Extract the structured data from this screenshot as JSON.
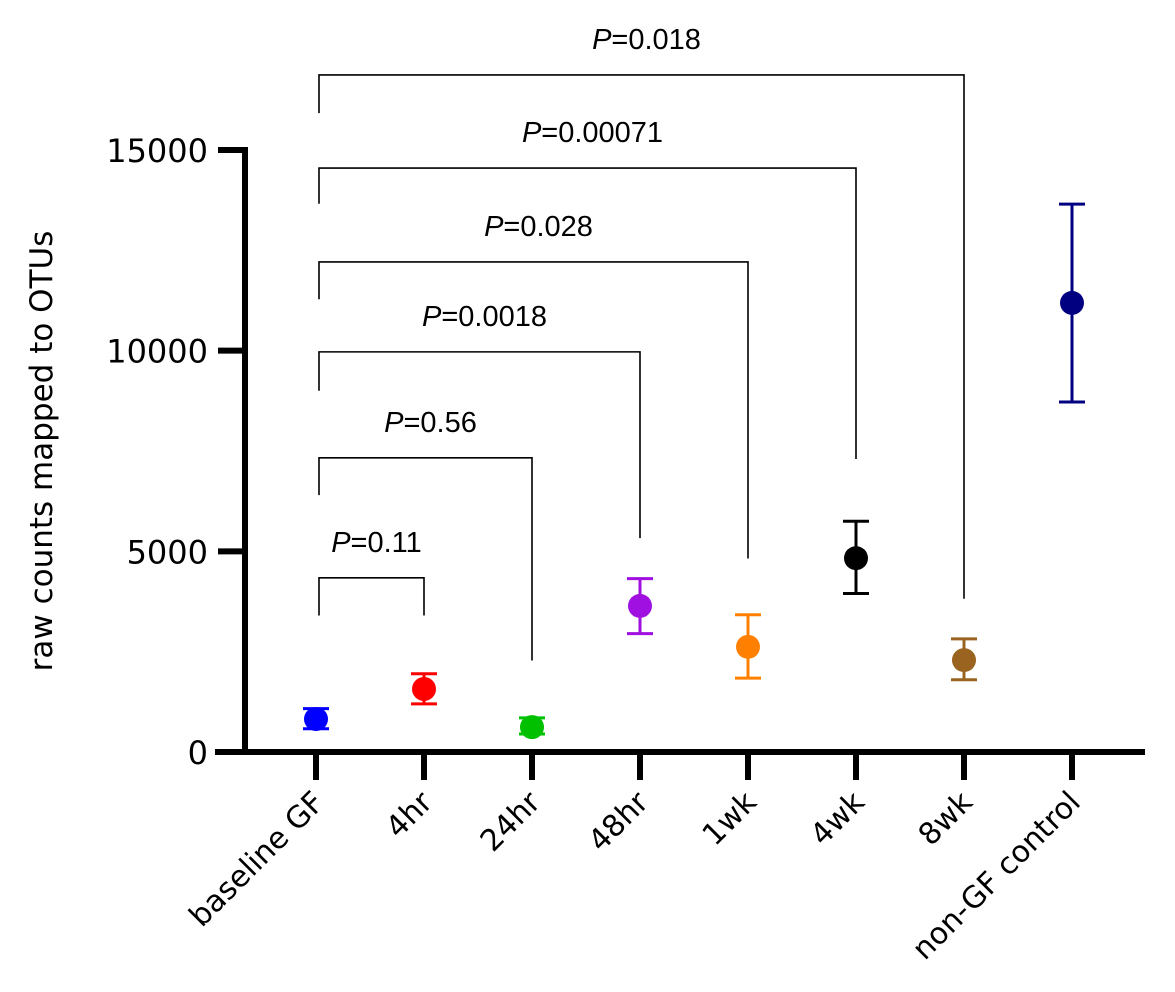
{
  "chart_data": {
    "type": "scatter",
    "title": "",
    "xlabel": "",
    "ylabel": "raw counts  mapped to OTUs",
    "ylim": [
      0,
      15000
    ],
    "yticks": [
      0,
      5000,
      10000,
      15000
    ],
    "ytick_labels": [
      "0",
      "5000",
      "10000",
      "15000"
    ],
    "grid": false,
    "legend": "none",
    "categories": [
      "baseline GF",
      "4hr",
      "24hr",
      "48hr",
      "1wk",
      "4wk",
      "8wk",
      "non-GF control"
    ],
    "points": [
      {
        "category": "baseline GF",
        "mean": 820,
        "err_low": 580,
        "err_high": 1080,
        "color": "#0000ff"
      },
      {
        "category": "4hr",
        "mean": 1570,
        "err_low": 1200,
        "err_high": 1950,
        "color": "#ff0000"
      },
      {
        "category": "24hr",
        "mean": 620,
        "err_low": 450,
        "err_high": 850,
        "color": "#00c000"
      },
      {
        "category": "48hr",
        "mean": 3640,
        "err_low": 2950,
        "err_high": 4320,
        "color": "#a010e0"
      },
      {
        "category": "1wk",
        "mean": 2620,
        "err_low": 1840,
        "err_high": 3420,
        "color": "#ff8000"
      },
      {
        "category": "4wk",
        "mean": 4830,
        "err_low": 3950,
        "err_high": 5750,
        "color": "#000000"
      },
      {
        "category": "8wk",
        "mean": 2290,
        "err_low": 1800,
        "err_high": 2820,
        "color": "#9a6420"
      },
      {
        "category": "non-GF control",
        "mean": 11190,
        "err_low": 8720,
        "err_high": 13650,
        "color": "#000080"
      }
    ],
    "comparisons": [
      {
        "from": "baseline GF",
        "to": "4hr",
        "p_prefix": "P",
        "p_value": "=0.11",
        "bar_y": 4340,
        "left_end": 3400,
        "right_end": 3400
      },
      {
        "from": "baseline GF",
        "to": "24hr",
        "p_prefix": "P",
        "p_value": "=0.56",
        "bar_y": 7330,
        "left_end": 6400,
        "right_end": 2280
      },
      {
        "from": "baseline GF",
        "to": "48hr",
        "p_prefix": "P",
        "p_value": "=0.0018",
        "bar_y": 9970,
        "left_end": 9000,
        "right_end": 5330
      },
      {
        "from": "baseline GF",
        "to": "1wk",
        "p_prefix": "P",
        "p_value": "=0.028",
        "bar_y": 12210,
        "left_end": 11280,
        "right_end": 4820
      },
      {
        "from": "baseline GF",
        "to": "4wk",
        "p_prefix": "P",
        "p_value": "=0.00071",
        "bar_y": 14550,
        "left_end": 13660,
        "right_end": 7300
      },
      {
        "from": "baseline GF",
        "to": "8wk",
        "p_prefix": "P",
        "p_value": "=0.018",
        "bar_y": 16870,
        "left_end": 15920,
        "right_end": 3820
      }
    ]
  }
}
